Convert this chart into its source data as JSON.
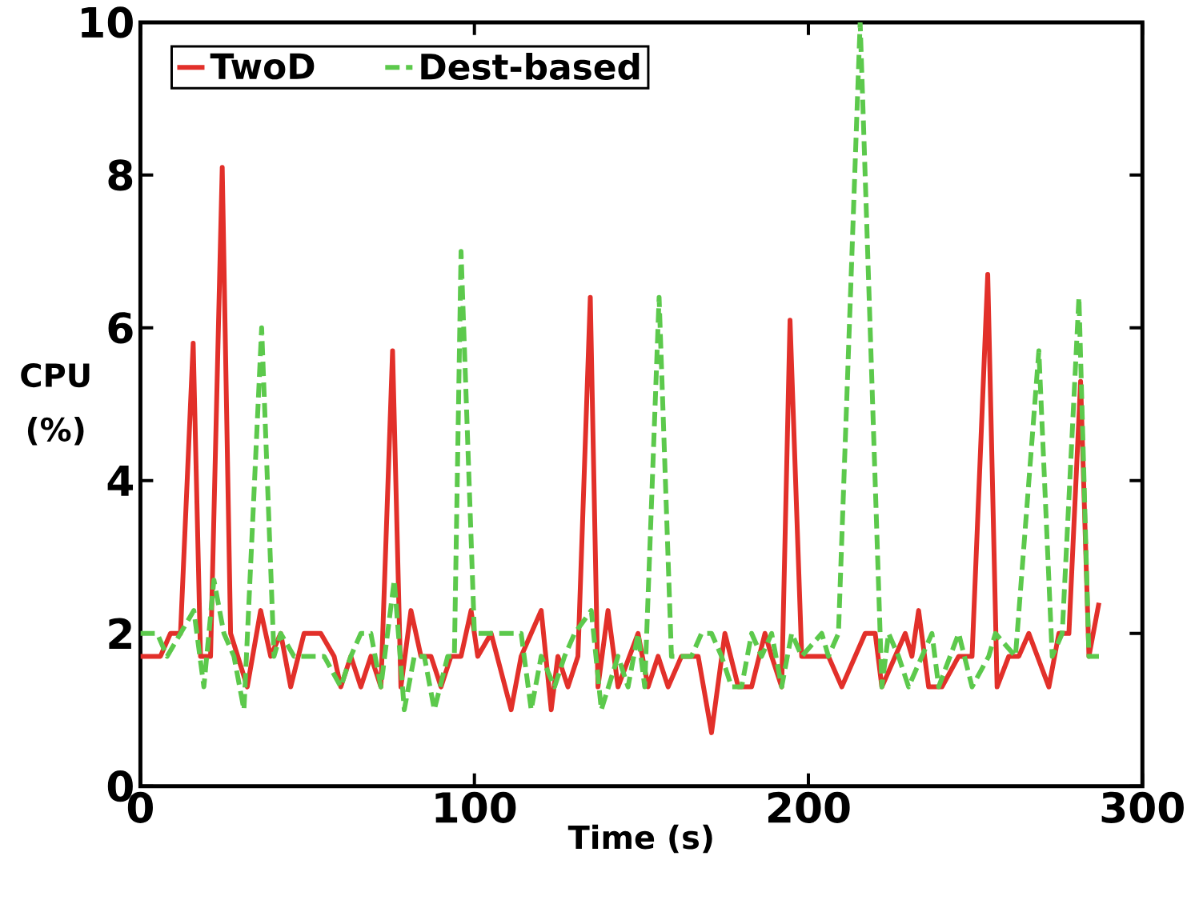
{
  "chart_data": {
    "type": "line",
    "xlabel": "Time (s)",
    "ylabel": "CPU (%)",
    "xlim": [
      0,
      300
    ],
    "xticks": [
      0,
      100,
      200,
      300
    ],
    "ylim": [
      0,
      10
    ],
    "yticks": [
      0,
      2,
      4,
      6,
      8,
      10
    ],
    "legend": "top left",
    "grid": false,
    "series": [
      {
        "name": "TwoD",
        "color": "#e2302a",
        "line_style": "solid",
        "x": [
          0,
          6,
          9,
          12,
          15.8,
          18,
          21,
          24.5,
          27,
          32,
          36,
          39,
          42,
          45,
          49,
          54,
          58,
          60,
          63,
          66,
          69,
          72,
          75.5,
          78,
          81,
          84,
          87,
          90,
          93,
          96,
          99,
          101,
          105,
          111,
          114,
          120,
          123,
          125,
          128,
          131,
          134.7,
          137,
          140,
          143,
          149,
          152,
          155,
          158,
          162,
          167,
          171,
          175,
          179,
          183,
          187,
          189,
          192,
          194.5,
          198,
          206,
          210,
          217,
          220,
          222,
          229,
          231,
          233,
          236,
          240,
          245,
          249,
          253.7,
          256.5,
          260,
          263,
          266,
          272,
          275,
          278,
          281.5,
          284,
          287
        ],
        "values": [
          1.7,
          1.7,
          2.0,
          2.0,
          5.8,
          1.7,
          1.7,
          8.1,
          2.0,
          1.3,
          2.3,
          1.7,
          2.0,
          1.3,
          2.0,
          2.0,
          1.7,
          1.3,
          1.7,
          1.3,
          1.7,
          1.3,
          5.7,
          1.3,
          2.3,
          1.7,
          1.7,
          1.3,
          1.7,
          1.7,
          2.3,
          1.7,
          2.0,
          1.0,
          1.7,
          2.3,
          1.0,
          1.7,
          1.3,
          1.7,
          6.4,
          1.3,
          2.3,
          1.3,
          2.0,
          1.3,
          1.7,
          1.3,
          1.7,
          1.7,
          0.7,
          2.0,
          1.3,
          1.3,
          2.0,
          1.7,
          1.3,
          6.1,
          1.7,
          1.7,
          1.3,
          2.0,
          2.0,
          1.3,
          2.0,
          1.7,
          2.3,
          1.3,
          1.3,
          1.7,
          1.7,
          6.7,
          1.3,
          1.7,
          1.7,
          2.0,
          1.3,
          2.0,
          2.0,
          5.3,
          1.7,
          2.4
        ]
      },
      {
        "name": "Dest-based",
        "color": "#5cc94c",
        "line_style": "dashed",
        "x": [
          0,
          5,
          8,
          12,
          16,
          19,
          22,
          25,
          28,
          31,
          36.3,
          40,
          42,
          46,
          55,
          60,
          63,
          66,
          69,
          72,
          76,
          79,
          82,
          85,
          88,
          92,
          94,
          96,
          100,
          110,
          114,
          117,
          120,
          124,
          127,
          130,
          135,
          138,
          143,
          146,
          149,
          151,
          155.3,
          159,
          165,
          168,
          171,
          174,
          177,
          180,
          183,
          186,
          189,
          192,
          195,
          198,
          204,
          206,
          209,
          215.5,
          222,
          224,
          227,
          230,
          237,
          239,
          245,
          249,
          254,
          256,
          262,
          269,
          273,
          276,
          281,
          284,
          287
        ],
        "values": [
          2.0,
          2.0,
          1.7,
          2.0,
          2.3,
          1.3,
          2.7,
          2.0,
          1.7,
          1.0,
          6.0,
          1.7,
          2.0,
          1.7,
          1.7,
          1.3,
          1.7,
          2.0,
          2.0,
          1.3,
          2.7,
          1.0,
          1.7,
          1.7,
          1.0,
          1.7,
          1.7,
          7.0,
          2.0,
          2.0,
          2.0,
          1.0,
          1.7,
          1.3,
          1.7,
          2.0,
          2.3,
          1.0,
          1.7,
          1.3,
          2.0,
          1.3,
          6.4,
          1.7,
          1.7,
          2.0,
          2.0,
          1.7,
          1.3,
          1.3,
          2.0,
          1.7,
          2.0,
          1.3,
          2.0,
          1.7,
          2.0,
          1.7,
          2.0,
          10.0,
          1.3,
          2.0,
          1.7,
          1.3,
          2.0,
          1.3,
          2.0,
          1.3,
          1.7,
          2.0,
          1.7,
          5.7,
          1.7,
          2.0,
          6.4,
          1.7,
          1.7
        ]
      }
    ]
  }
}
